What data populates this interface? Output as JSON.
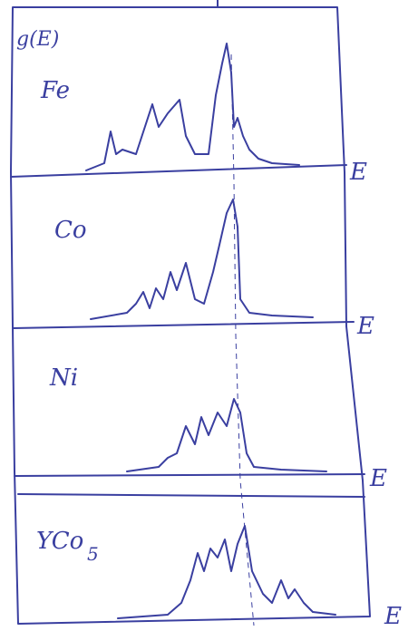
{
  "y_label": "g(E)",
  "panels": [
    {
      "label": "Fe",
      "axis_label": "E"
    },
    {
      "label": "Co",
      "axis_label": "E"
    },
    {
      "label": "Ni",
      "axis_label": "E"
    },
    {
      "label": "YCo",
      "label_subscript": "5",
      "axis_label": "E"
    }
  ]
}
